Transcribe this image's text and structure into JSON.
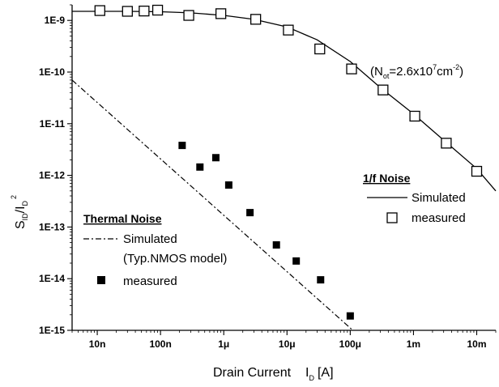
{
  "chart_data": {
    "type": "scatter",
    "xlabel_main": "Drain Current",
    "xlabel_var": "I",
    "xlabel_var_sub": "D",
    "xlabel_unit": "[A]",
    "ylabel_parts": {
      "s": "S",
      "s_sub": "ID",
      "slash": "/I",
      "i_sub": "D",
      "sup": "2"
    },
    "x_scale": "log",
    "y_scale": "log",
    "xlim": [
      4e-09,
      0.02
    ],
    "ylim": [
      1e-15,
      2e-09
    ],
    "x_ticks": [
      {
        "value": 1e-08,
        "label": "10n"
      },
      {
        "value": 1e-07,
        "label": "100n"
      },
      {
        "value": 1e-06,
        "label": "1μ"
      },
      {
        "value": 1e-05,
        "label": "10μ"
      },
      {
        "value": 0.0001,
        "label": "100μ"
      },
      {
        "value": 0.001,
        "label": "1m"
      },
      {
        "value": 0.01,
        "label": "10m"
      }
    ],
    "y_ticks": [
      {
        "value": 1e-09,
        "label": "1E-9"
      },
      {
        "value": 1e-10,
        "label": "1E-10"
      },
      {
        "value": 1e-11,
        "label": "1E-11"
      },
      {
        "value": 1e-12,
        "label": "1E-12"
      },
      {
        "value": 1e-13,
        "label": "1E-13"
      },
      {
        "value": 1e-14,
        "label": "1E-14"
      },
      {
        "value": 1e-15,
        "label": "1E-15"
      }
    ],
    "grid": false,
    "series": [
      {
        "legend_group": "flicker",
        "style": "solid-line",
        "points": [
          [
            4e-09,
            1.5e-09
          ],
          [
            1e-08,
            1.5e-09
          ],
          [
            3e-08,
            1.5e-09
          ],
          [
            1e-07,
            1.47e-09
          ],
          [
            3e-07,
            1.4e-09
          ],
          [
            1e-06,
            1.25e-09
          ],
          [
            3e-06,
            1.05e-09
          ],
          [
            1e-05,
            7.5e-10
          ],
          [
            3e-05,
            4.2e-10
          ],
          [
            0.0001,
            1.6e-10
          ],
          [
            0.0003,
            5e-11
          ],
          [
            0.001,
            1.55e-11
          ],
          [
            0.003,
            4.8e-12
          ],
          [
            0.01,
            1.35e-12
          ],
          [
            0.02,
            5e-13
          ]
        ]
      },
      {
        "legend_group": "flicker",
        "style": "open-square",
        "points": [
          [
            1.1e-08,
            1.55e-09
          ],
          [
            3e-08,
            1.5e-09
          ],
          [
            5.5e-08,
            1.52e-09
          ],
          [
            9e-08,
            1.58e-09
          ],
          [
            2.8e-07,
            1.25e-09
          ],
          [
            9e-07,
            1.35e-09
          ],
          [
            3.2e-06,
            1.05e-09
          ],
          [
            1.05e-05,
            6.5e-10
          ],
          [
            3.3e-05,
            2.8e-10
          ],
          [
            0.000105,
            1.15e-10
          ],
          [
            0.00033,
            4.5e-11
          ],
          [
            0.00105,
            1.4e-11
          ],
          [
            0.0033,
            4.2e-12
          ],
          [
            0.01,
            1.2e-12
          ]
        ]
      },
      {
        "legend_group": "thermal",
        "style": "dash-dot-line",
        "points": [
          [
            4e-09,
            7e-11
          ],
          [
            0.00011,
            1e-15
          ]
        ]
      },
      {
        "legend_group": "thermal",
        "style": "filled-square",
        "points": [
          [
            2.2e-07,
            3.8e-12
          ],
          [
            4.2e-07,
            1.45e-12
          ],
          [
            7.5e-07,
            2.2e-12
          ],
          [
            1.2e-06,
            6.5e-13
          ],
          [
            2.6e-06,
            1.9e-13
          ],
          [
            6.8e-06,
            4.5e-14
          ],
          [
            1.4e-05,
            2.2e-14
          ],
          [
            3.4e-05,
            9.5e-15
          ],
          [
            0.0001,
            1.9e-15
          ]
        ]
      }
    ],
    "legend_flicker": {
      "title": "1/f Noise",
      "simulated_label": "Simulated",
      "measured_label": "measured"
    },
    "legend_thermal": {
      "title": "Thermal Noise",
      "simulated_label": "Simulated",
      "model_note": "(Typ.NMOS model)",
      "measured_label": "measured"
    },
    "annotation": {
      "open": "(N",
      "sub": "ot",
      "mid": "=2.6x10",
      "sup1": "7",
      "unit": "cm",
      "sup2": "-2",
      "close": ")"
    }
  }
}
